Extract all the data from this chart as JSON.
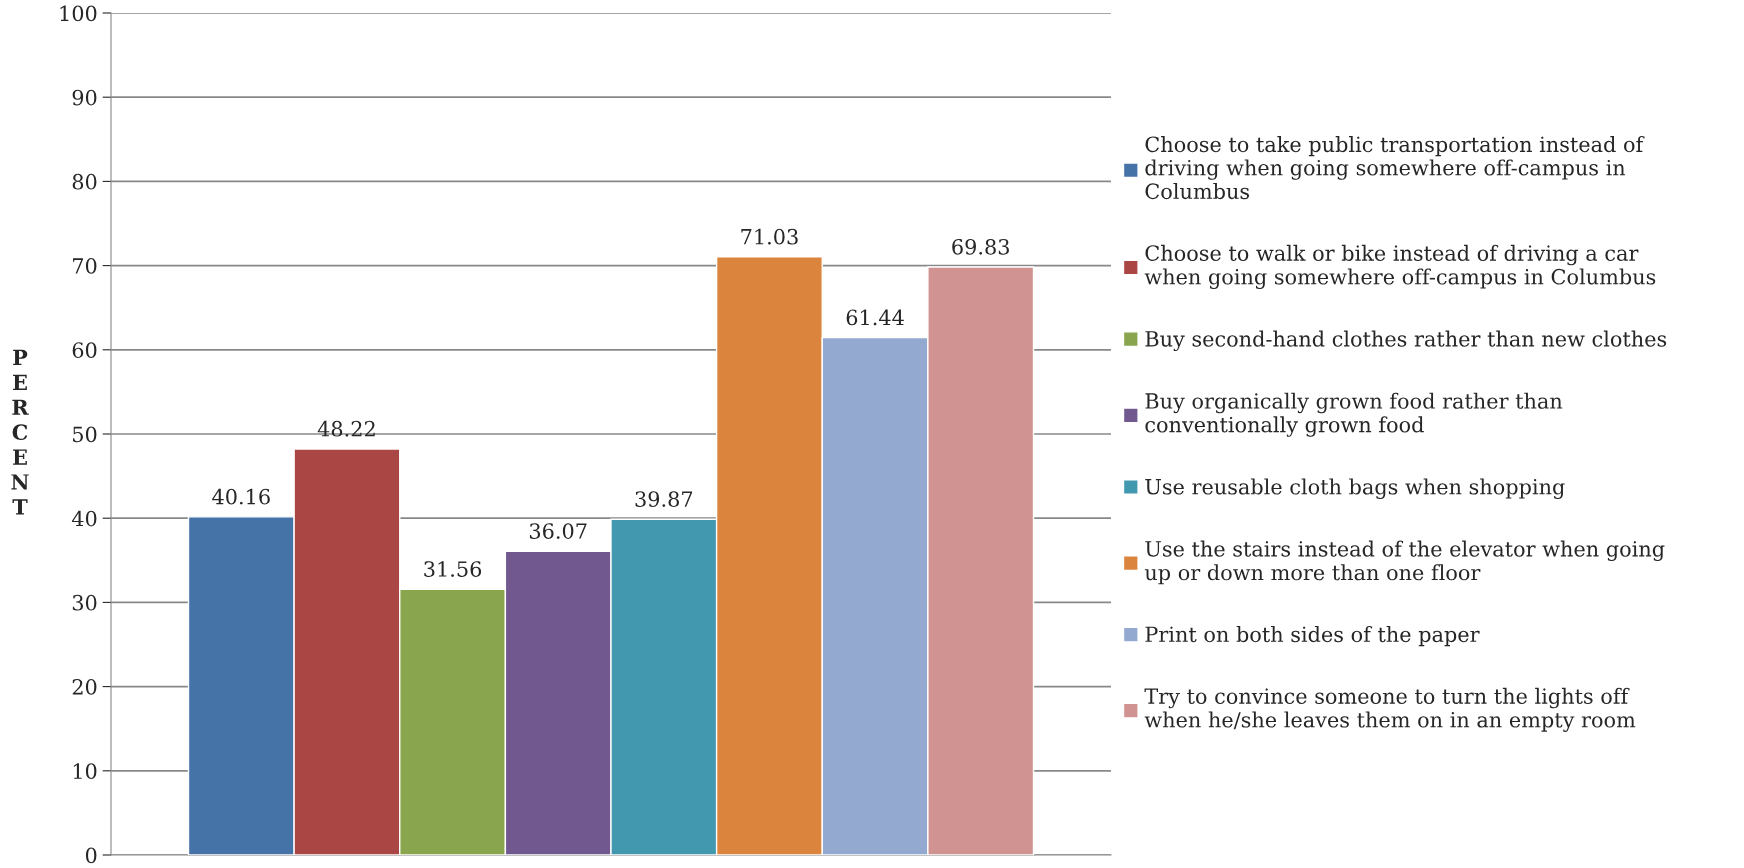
{
  "chart_data": {
    "type": "bar",
    "ylabel": "PERCENT",
    "categories": [
      null
    ],
    "series": [
      {
        "name": "Choose to take public transportation instead of driving when going somewhere off-campus in Columbus",
        "color": "#4572a7",
        "values": [
          40.16
        ]
      },
      {
        "name": "Choose to walk or bike instead of driving a car when going somewhere off-campus in Columbus",
        "color": "#aa4643",
        "values": [
          48.22
        ]
      },
      {
        "name": "Buy second-hand clothes rather than new clothes",
        "color": "#89a54e",
        "values": [
          31.56
        ]
      },
      {
        "name": "Buy organically grown food rather than conventionally grown food",
        "color": "#71588f",
        "values": [
          36.07
        ]
      },
      {
        "name": "Use reusable cloth bags when shopping",
        "color": "#4198af",
        "values": [
          39.87
        ]
      },
      {
        "name": "Use the stairs instead of the elevator when going up or down more than one floor",
        "color": "#db843d",
        "values": [
          71.03
        ]
      },
      {
        "name": "Print on both sides of the paper",
        "color": "#93a9cf",
        "values": [
          61.44
        ]
      },
      {
        "name": "Try to convince someone to turn the lights off when he/she leaves them on in an empty room",
        "color": "#d19392",
        "values": [
          69.83
        ]
      }
    ],
    "ylim": [
      0,
      100
    ],
    "yticks": [
      0,
      10,
      20,
      30,
      40,
      50,
      60,
      70,
      80,
      90,
      100
    ],
    "grid": "y",
    "legend": "right",
    "data_labels": true
  }
}
